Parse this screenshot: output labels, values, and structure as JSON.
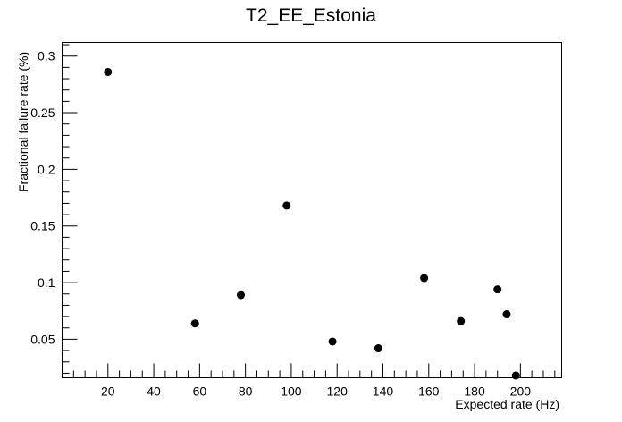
{
  "chart_data": {
    "type": "scatter",
    "title": "T2_EE_Estonia",
    "xlabel": "Expected rate (Hz)",
    "ylabel": "Fractional failure rate (%)",
    "xlim": [
      0,
      218
    ],
    "ylim": [
      0.016,
      0.312
    ],
    "xticks": [
      20,
      40,
      60,
      80,
      100,
      120,
      140,
      160,
      180,
      200
    ],
    "yticks": [
      0.05,
      0.1,
      0.15,
      0.2,
      0.25,
      0.3
    ],
    "ytick_labels": [
      "0.05",
      "0.1",
      "0.15",
      "0.2",
      "0.25",
      "0.3"
    ],
    "grid": false,
    "marker_color": "#000000",
    "points": [
      {
        "x": 20,
        "y": 0.286
      },
      {
        "x": 58,
        "y": 0.064
      },
      {
        "x": 78,
        "y": 0.089
      },
      {
        "x": 98,
        "y": 0.168
      },
      {
        "x": 118,
        "y": 0.048
      },
      {
        "x": 138,
        "y": 0.042
      },
      {
        "x": 158,
        "y": 0.104
      },
      {
        "x": 174,
        "y": 0.066
      },
      {
        "x": 190,
        "y": 0.094
      },
      {
        "x": 194,
        "y": 0.072
      },
      {
        "x": 198,
        "y": 0.018
      }
    ]
  }
}
